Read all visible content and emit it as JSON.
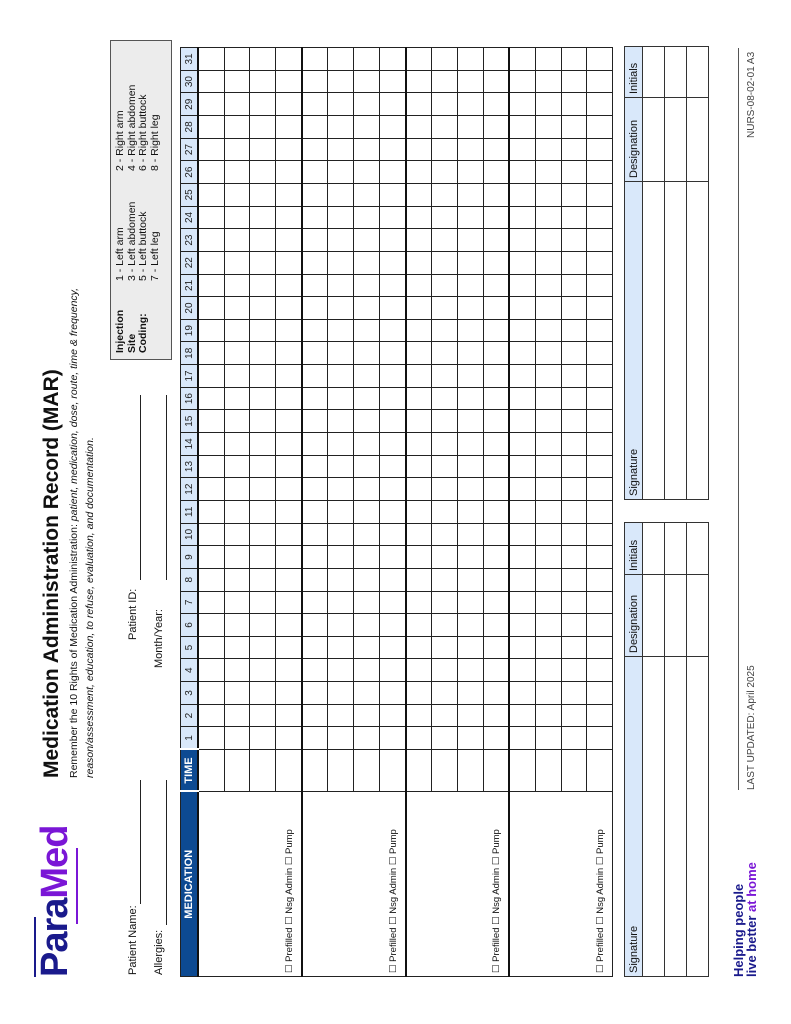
{
  "logo": {
    "part1": "Para",
    "part2": "Med"
  },
  "header": {
    "title": "Medication Administration Record (MAR)",
    "rights_intro": "Remember the 10 Rights of Medication Administration: ",
    "rights_line1": "patient, medication, dose, route, time & frequency,",
    "rights_line2": "reason/assessment, education, to refuse, evaluation, and documentation."
  },
  "fields": {
    "patient_name": "Patient Name:",
    "patient_id": "Patient ID:",
    "allergies": "Allergies:",
    "month_year": "Month/Year:"
  },
  "injection_site": {
    "label": [
      "Injection",
      "Site",
      "Coding:"
    ],
    "col1": [
      "1 - Left arm",
      "3 - Left abdomen",
      "5 - Left buttock",
      "7 - Left leg"
    ],
    "col2": [
      "2 - Right arm",
      "4 - Right abdomen",
      "6 - Right buttock",
      "8 - Right leg"
    ]
  },
  "table": {
    "medication_header": "MEDICATION",
    "time_header": "TIME",
    "days": [
      "1",
      "2",
      "3",
      "4",
      "5",
      "6",
      "7",
      "8",
      "9",
      "10",
      "11",
      "12",
      "13",
      "14",
      "15",
      "16",
      "17",
      "18",
      "19",
      "20",
      "21",
      "22",
      "23",
      "24",
      "25",
      "26",
      "27",
      "28",
      "29",
      "30",
      "31"
    ],
    "med_options": "☐ Prefilled  ☐ Nsg Admin  ☐ Pump",
    "header_color": "#0d4a92",
    "day_header_color": "#d9e8fa"
  },
  "signature_table": {
    "signature": "Signature",
    "designation": "Designation",
    "initials": "Initials"
  },
  "footer": {
    "tag1": "Helping people",
    "tag2a": "live better ",
    "tag2b": "at home",
    "updated": "LAST UPDATED: April 2025",
    "code": "NURS-08-02-01 A3"
  }
}
